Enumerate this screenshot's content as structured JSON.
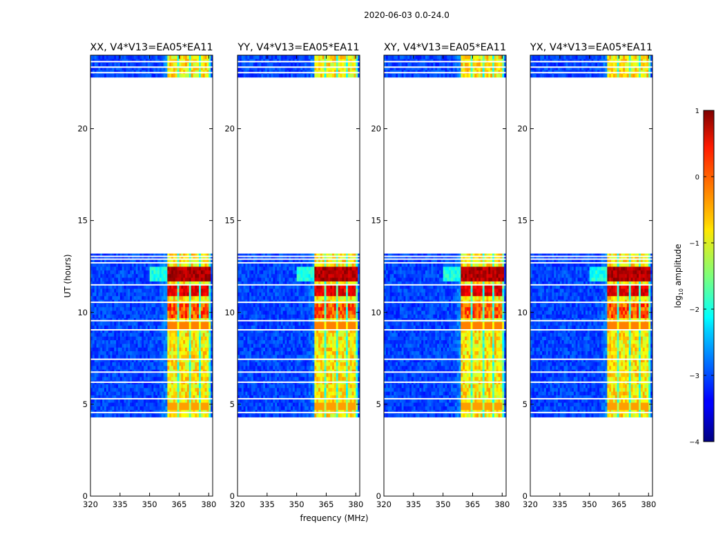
{
  "chart_data": {
    "type": "heatmap",
    "suptitle": "2020-06-03 0.0-24.0",
    "xlabel": "frequency (MHz)",
    "ylabel": "UT (hours)",
    "xlim": [
      320,
      382
    ],
    "ylim": [
      0,
      24
    ],
    "xticks": [
      320,
      335,
      350,
      365,
      380
    ],
    "yticks": [
      0,
      5,
      10,
      15,
      20
    ],
    "colorbar": {
      "label": "log10 amplitude",
      "range": [
        -4,
        1
      ],
      "ticks": [
        1,
        0,
        -1,
        -2,
        -3,
        -4
      ],
      "tick_labels": [
        "1",
        "0",
        "−1",
        "−2",
        "−3",
        "−4"
      ],
      "colormap": "jet"
    },
    "panels": [
      {
        "title": "XX, V4*V13=EA05*EA11",
        "pol": "XX"
      },
      {
        "title": "YY, V4*V13=EA05*EA11",
        "pol": "YY"
      },
      {
        "title": "XY, V4*V13=EA05*EA11",
        "pol": "XY"
      },
      {
        "title": "YX, V4*V13=EA05*EA11",
        "pol": "YX"
      }
    ],
    "data_blocks": [
      {
        "t_start": 4.3,
        "t_end": 13.2,
        "note": "main observation block"
      },
      {
        "t_start": 22.8,
        "t_end": 24.0,
        "note": "late block"
      }
    ],
    "rfi_band_mhz": [
      359.5,
      380.5
    ],
    "rfi_channels_mhz": [
      361.5,
      367.5,
      373,
      378
    ],
    "strong_rfi_hours": [
      11.7,
      12.5
    ]
  }
}
